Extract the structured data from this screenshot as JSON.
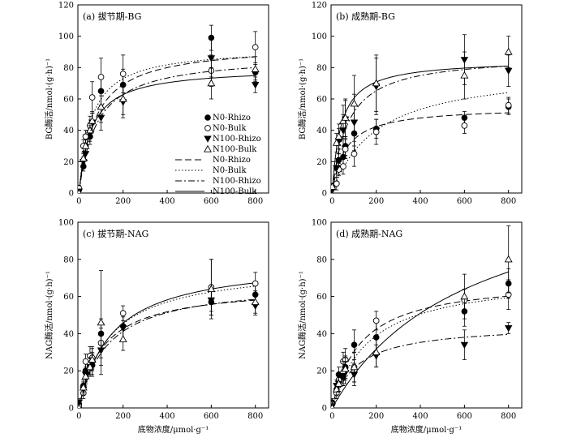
{
  "chart_data": [
    {
      "type": "scatter",
      "title": "(a) 拔节期-BG",
      "ylabel": "BG酶活/nmol·(g·h)⁻¹",
      "xlabel": "",
      "xlim": [
        -5,
        860
      ],
      "ylim": [
        0,
        120
      ],
      "xticks": [
        0,
        200,
        400,
        600,
        800
      ],
      "yticks": [
        0,
        20,
        40,
        60,
        80,
        100,
        120
      ],
      "grid": false,
      "legend_position": "right-center",
      "legend": [
        "N0-Rhizo",
        "N0-Bulk",
        "N100-Rhizo",
        "N100-Bulk",
        "N0-Rhizo",
        "N0-Bulk",
        "N100-Rhizo",
        "N100-Bulk"
      ],
      "series": [
        {
          "name": "N0-Rhizo",
          "marker": "filled-circle",
          "line": "dashed",
          "x": [
            0,
            20,
            30,
            50,
            60,
            100,
            200,
            600,
            800
          ],
          "y": [
            2,
            17,
            30,
            36,
            45,
            65,
            69,
            99,
            77
          ],
          "err": [
            2,
            3,
            4,
            5,
            6,
            10,
            10,
            8,
            5
          ],
          "fit": {
            "vmax": 95,
            "km": 75
          }
        },
        {
          "name": "N0-Bulk",
          "marker": "open-circle",
          "line": "dotted",
          "x": [
            0,
            20,
            30,
            50,
            60,
            100,
            200,
            600,
            800
          ],
          "y": [
            3,
            30,
            36,
            43,
            61,
            74,
            76,
            78,
            93
          ],
          "err": [
            2,
            4,
            4,
            6,
            10,
            12,
            12,
            10,
            10
          ],
          "fit": {
            "vmax": 93,
            "km": 55
          }
        },
        {
          "name": "N100-Rhizo",
          "marker": "filled-triangle-down",
          "line": "dash-dot",
          "x": [
            0,
            20,
            30,
            50,
            60,
            100,
            200,
            600,
            800
          ],
          "y": [
            1,
            20,
            25,
            38,
            45,
            48,
            58,
            86,
            69
          ],
          "err": [
            1,
            3,
            4,
            5,
            6,
            8,
            10,
            12,
            5
          ],
          "fit": {
            "vmax": 88,
            "km": 80
          }
        },
        {
          "name": "N100-Bulk",
          "marker": "open-triangle-up",
          "line": "solid",
          "x": [
            0,
            20,
            30,
            50,
            60,
            100,
            200,
            600,
            800
          ],
          "y": [
            0,
            22,
            30,
            40,
            46,
            55,
            60,
            70,
            79
          ],
          "err": [
            1,
            3,
            4,
            5,
            6,
            10,
            10,
            10,
            8
          ],
          "fit": {
            "vmax": 80,
            "km": 55
          }
        }
      ]
    },
    {
      "type": "scatter",
      "title": "(b) 成熟期-BG",
      "ylabel": "BG酶活/nmol·(g·h)⁻¹",
      "xlabel": "",
      "xlim": [
        -5,
        860
      ],
      "ylim": [
        0,
        120
      ],
      "xticks": [
        0,
        200,
        400,
        600,
        800
      ],
      "yticks": [
        0,
        20,
        40,
        60,
        80,
        100,
        120
      ],
      "grid": false,
      "series": [
        {
          "name": "N0-Rhizo",
          "marker": "filled-circle",
          "line": "dashed",
          "x": [
            0,
            20,
            30,
            50,
            60,
            100,
            200,
            600,
            800
          ],
          "y": [
            3,
            16,
            21,
            23,
            30,
            38,
            41,
            48,
            55
          ],
          "err": [
            2,
            4,
            4,
            5,
            6,
            8,
            6,
            4,
            5
          ],
          "fit": {
            "vmax": 55,
            "km": 60
          }
        },
        {
          "name": "N0-Bulk",
          "marker": "open-circle",
          "line": "dotted",
          "x": [
            0,
            20,
            30,
            50,
            60,
            100,
            200,
            600,
            800
          ],
          "y": [
            -3,
            6,
            15,
            17,
            28,
            25,
            39,
            43,
            56
          ],
          "err": [
            2,
            4,
            4,
            5,
            6,
            8,
            8,
            5,
            5
          ],
          "fit": {
            "vmax": 80,
            "km": 200
          }
        },
        {
          "name": "N100-Rhizo",
          "marker": "filled-triangle-down",
          "line": "dash-dot",
          "x": [
            0,
            20,
            30,
            50,
            60,
            100,
            200,
            600,
            800
          ],
          "y": [
            2,
            16,
            33,
            40,
            47,
            45,
            68,
            85,
            78
          ],
          "err": [
            2,
            6,
            8,
            10,
            12,
            18,
            18,
            16,
            10
          ],
          "fit": {
            "vmax": 88,
            "km": 70
          }
        },
        {
          "name": "N100-Bulk",
          "marker": "open-triangle-up",
          "line": "solid",
          "x": [
            0,
            20,
            30,
            50,
            60,
            100,
            200,
            600,
            800
          ],
          "y": [
            4,
            32,
            36,
            46,
            48,
            57,
            70,
            75,
            90
          ],
          "err": [
            2,
            6,
            8,
            10,
            12,
            18,
            18,
            15,
            10
          ],
          "fit": {
            "vmax": 85,
            "km": 40
          }
        }
      ]
    },
    {
      "type": "scatter",
      "title": "(c) 拔节期-NAG",
      "ylabel": "NAG酶活/nmol·(g·h)⁻¹",
      "xlabel": "底物浓度/μmol·g⁻¹",
      "xlim": [
        -5,
        860
      ],
      "ylim": [
        0,
        100
      ],
      "xticks": [
        0,
        200,
        400,
        600,
        800
      ],
      "yticks": [
        0,
        20,
        40,
        60,
        80,
        100
      ],
      "grid": false,
      "series": [
        {
          "name": "N0-Rhizo",
          "marker": "filled-circle",
          "line": "dashed",
          "x": [
            0,
            20,
            30,
            50,
            60,
            100,
            200,
            600,
            800
          ],
          "y": [
            2,
            12,
            20,
            22,
            23,
            40,
            44,
            57,
            61
          ],
          "err": [
            2,
            3,
            4,
            5,
            6,
            8,
            8,
            7,
            5
          ],
          "fit": {
            "vmax": 66,
            "km": 110
          }
        },
        {
          "name": "N0-Bulk",
          "marker": "open-circle",
          "line": "dotted",
          "x": [
            0,
            20,
            30,
            50,
            60,
            100,
            200,
            600,
            800
          ],
          "y": [
            1,
            8,
            25,
            28,
            27,
            35,
            51,
            65,
            67
          ],
          "err": [
            2,
            3,
            4,
            5,
            6,
            8,
            4,
            15,
            6
          ],
          "fit": {
            "vmax": 77,
            "km": 140
          }
        },
        {
          "name": "N100-Rhizo",
          "marker": "filled-triangle-down",
          "line": "dash-dot",
          "x": [
            0,
            20,
            30,
            50,
            60,
            100,
            200,
            600,
            800
          ],
          "y": [
            3,
            10,
            18,
            22,
            24,
            31,
            43,
            58,
            55
          ],
          "err": [
            2,
            3,
            4,
            5,
            6,
            8,
            6,
            6,
            5
          ],
          "fit": {
            "vmax": 68,
            "km": 130
          }
        },
        {
          "name": "N100-Bulk",
          "marker": "open-triangle-up",
          "line": "solid",
          "x": [
            0,
            20,
            30,
            50,
            60,
            100,
            200,
            600,
            800
          ],
          "y": [
            0,
            11,
            17,
            22,
            26,
            46,
            37,
            64,
            57
          ],
          "err": [
            2,
            3,
            4,
            5,
            6,
            28,
            6,
            16,
            6
          ],
          "fit": {
            "vmax": 80,
            "km": 150
          }
        }
      ]
    },
    {
      "type": "scatter",
      "title": "(d) 成熟期-NAG",
      "ylabel": "NAG酶活/nmol·(g·h)⁻¹",
      "xlabel": "底物浓度/μmol·g⁻¹",
      "xlim": [
        -5,
        860
      ],
      "ylim": [
        0,
        100
      ],
      "xticks": [
        0,
        200,
        400,
        600,
        800
      ],
      "yticks": [
        0,
        20,
        40,
        60,
        80,
        100
      ],
      "grid": false,
      "series": [
        {
          "name": "N0-Rhizo",
          "marker": "filled-circle",
          "line": "dashed",
          "x": [
            0,
            20,
            30,
            50,
            60,
            100,
            200,
            600,
            800
          ],
          "y": [
            3,
            10,
            18,
            17,
            22,
            34,
            38,
            52,
            67
          ],
          "err": [
            2,
            3,
            4,
            5,
            6,
            8,
            8,
            8,
            8
          ],
          "fit": {
            "vmax": 70,
            "km": 130
          }
        },
        {
          "name": "N0-Bulk",
          "marker": "open-circle",
          "line": "dotted",
          "x": [
            0,
            20,
            30,
            50,
            60,
            100,
            200,
            600,
            800
          ],
          "y": [
            2,
            8,
            15,
            25,
            26,
            22,
            47,
            58,
            61
          ],
          "err": [
            2,
            3,
            4,
            5,
            6,
            8,
            5,
            6,
            8
          ],
          "fit": {
            "vmax": 72,
            "km": 170
          }
        },
        {
          "name": "N100-Rhizo",
          "marker": "filled-triangle-down",
          "line": "dash-dot",
          "x": [
            0,
            20,
            30,
            50,
            60,
            100,
            200,
            600,
            800
          ],
          "y": [
            1,
            12,
            13,
            17,
            19,
            18,
            28,
            34,
            43
          ],
          "err": [
            2,
            3,
            4,
            5,
            6,
            6,
            6,
            8,
            3
          ],
          "fit": {
            "vmax": 45,
            "km": 110
          }
        },
        {
          "name": "N100-Bulk",
          "marker": "open-triangle-up",
          "line": "solid",
          "x": [
            0,
            20,
            30,
            50,
            60,
            100,
            200,
            600,
            800
          ],
          "y": [
            0,
            10,
            13,
            20,
            21,
            22,
            30,
            60,
            80
          ],
          "err": [
            2,
            3,
            4,
            5,
            6,
            8,
            8,
            12,
            18
          ],
          "fit": {
            "vmax": 130,
            "km": 620
          }
        }
      ]
    }
  ]
}
